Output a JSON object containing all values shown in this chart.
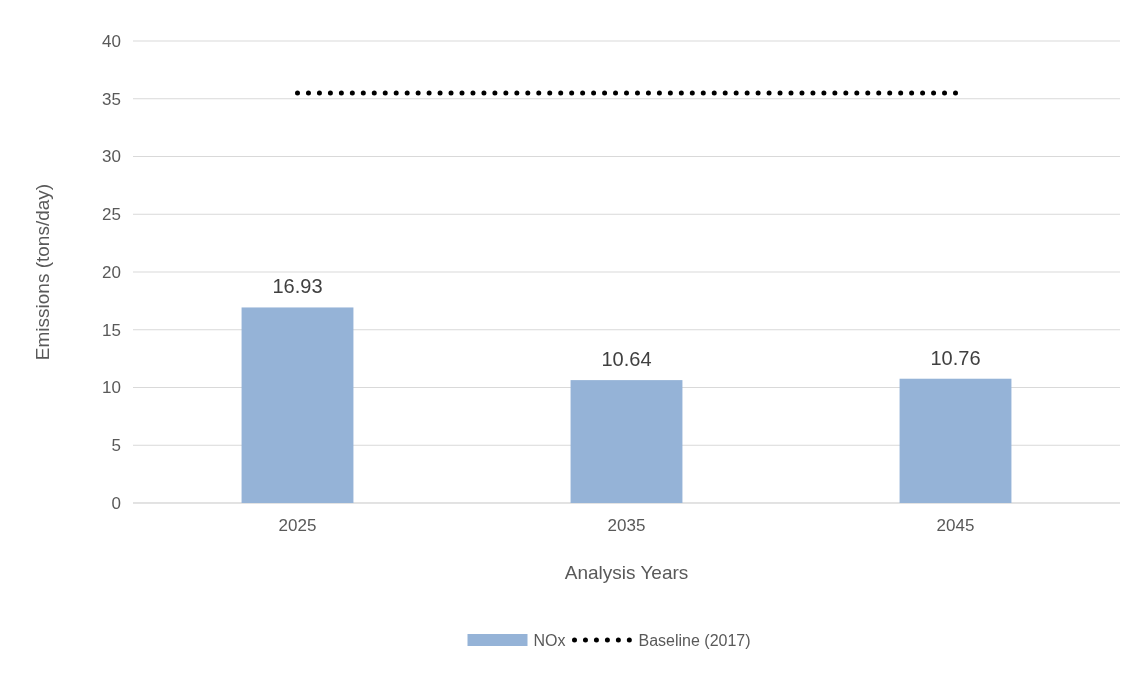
{
  "chart_data": {
    "type": "bar",
    "xlabel": "Analysis Years",
    "ylabel": "Emissions (tons/day)",
    "categories": [
      "2025",
      "2035",
      "2045"
    ],
    "series": [
      {
        "name": "NOx",
        "color": "#95b3d7",
        "values": [
          16.93,
          10.64,
          10.76
        ],
        "value_labels": [
          "16.93",
          "10.64",
          "10.76"
        ]
      },
      {
        "name": "Baseline (2017)",
        "type": "line",
        "color": "#000000",
        "values": [
          35.5,
          35.5,
          35.5
        ],
        "line_style": "dotted",
        "marker": "none"
      }
    ],
    "ylim": [
      0,
      40
    ],
    "yticks": [
      0,
      5,
      10,
      15,
      20,
      25,
      30,
      35,
      40
    ],
    "grid": "y",
    "legend": "bottom"
  }
}
